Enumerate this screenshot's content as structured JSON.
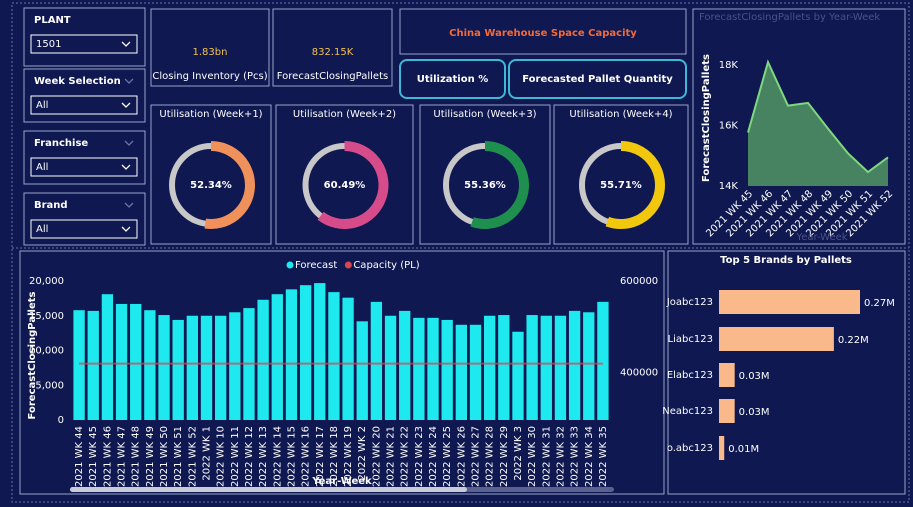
{
  "slicers": [
    {
      "label": "PLANT",
      "value": "1501"
    },
    {
      "label": "Week Selection",
      "value": "All"
    },
    {
      "label": "Franchise",
      "value": "All"
    },
    {
      "label": "Brand",
      "value": "All"
    }
  ],
  "cards": [
    {
      "value": "1.83bn",
      "label": "Closing Inventory (Pcs)"
    },
    {
      "value": "832.15K",
      "label": "ForecastClosingPallets"
    }
  ],
  "header": {
    "title": "China Warehouse Space Capacity",
    "buttons": [
      "Utilization %",
      "Forecasted Pallet Quantity"
    ]
  },
  "chart_data": [
    {
      "type": "donut",
      "title": "Utilisation (Week+1)",
      "values": [
        52.34
      ],
      "value_labels": [
        "52.34%"
      ],
      "color": "#f0905a"
    },
    {
      "type": "donut",
      "title": "Utilisation (Week+2)",
      "values": [
        60.49
      ],
      "value_labels": [
        "60.49%"
      ],
      "color": "#d64c8a"
    },
    {
      "type": "donut",
      "title": "Utilisation (Week+3)",
      "values": [
        55.36
      ],
      "value_labels": [
        "55.36%"
      ],
      "color": "#1f8f4e"
    },
    {
      "type": "donut",
      "title": "Utilisation (Week+4)",
      "values": [
        55.71
      ],
      "value_labels": [
        "55.71%"
      ],
      "color": "#f2c80f"
    },
    {
      "type": "area",
      "title": "ForecastClosingPallets by Year-Week",
      "y_label": "ForecastClosingPallets",
      "x_label": "Year-Week",
      "categories": [
        "2021 WK 45",
        "2021 WK 46",
        "2021 WK 47",
        "2021 WK 48",
        "2021 WK 49",
        "2021 WK 50",
        "2021 WK 51",
        "2021 WK 52"
      ],
      "values": [
        15770,
        18100,
        16660,
        16750,
        15900,
        15080,
        14460,
        14950
      ],
      "color": "#7ed87e",
      "ylim": [
        14000,
        18500
      ],
      "yticks": [
        {
          "value": 14000,
          "label": "14K"
        },
        {
          "value": 16000,
          "label": "16K"
        },
        {
          "value": 18000,
          "label": "18K"
        }
      ]
    },
    {
      "type": "bar",
      "y_label": "ForecastClosingPallets",
      "x_label": "Year-Week",
      "categories": [
        "2021 WK 44",
        "2021 WK 45",
        "2021 WK 46",
        "2021 WK 47",
        "2021 WK 48",
        "2021 WK 49",
        "2021 WK 50",
        "2021 WK 51",
        "2021 WK 52",
        "2022 WK 1",
        "2022 WK 10",
        "2022 WK 11",
        "2022 WK 12",
        "2022 WK 13",
        "2022 WK 14",
        "2022 WK 15",
        "2022 WK 16",
        "2022 WK 17",
        "2022 WK 18",
        "2022 WK 19",
        "2022 WK 2",
        "2022 WK 20",
        "2022 WK 21",
        "2022 WK 22",
        "2022 WK 23",
        "2022 WK 24",
        "2022 WK 25",
        "2022 WK 26",
        "2022 WK 27",
        "2022 WK 28",
        "2022 WK 29",
        "2022 WK 3",
        "2022 WK 30",
        "2022 WK 31",
        "2022 WK 32",
        "2022 WK 33",
        "2022 WK 34",
        "2022 WK 35"
      ],
      "series": [
        {
          "name": "Forecast",
          "color": "#1de9ee",
          "values": [
            15800,
            15700,
            18100,
            16700,
            16700,
            15800,
            15100,
            14400,
            15000,
            15000,
            15000,
            15500,
            16100,
            17300,
            18100,
            18800,
            19400,
            19700,
            18400,
            17600,
            14200,
            17000,
            15000,
            15700,
            14700,
            14700,
            14400,
            13700,
            13700,
            15000,
            15100,
            12700,
            15100,
            15000,
            15000,
            15700,
            15500,
            17000
          ]
        },
        {
          "name": "Capacity (PL)",
          "color": "#d64550",
          "axis": "y2",
          "values": [
            420000,
            420000,
            420000,
            420000,
            420000,
            420000,
            420000,
            420000,
            420000,
            420000,
            420000,
            420000,
            420000,
            420000,
            420000,
            420000,
            420000,
            420000,
            420000,
            420000,
            420000,
            420000,
            420000,
            420000,
            420000,
            420000,
            420000,
            420000,
            420000,
            420000,
            420000,
            420000,
            420000,
            420000,
            420000,
            420000,
            420000,
            420000
          ]
        }
      ],
      "ylim": [
        0,
        20000
      ],
      "yticks": [
        0,
        {
          "value": 5000,
          "label": "5,000"
        },
        {
          "value": 10000,
          "label": "10,000"
        },
        {
          "value": 15000,
          "label": "15,000"
        },
        {
          "value": 20000,
          "label": "20,000"
        }
      ],
      "y2lim": [
        297000,
        600000
      ],
      "y2ticks": [
        400000,
        600000
      ]
    },
    {
      "type": "hbar",
      "title": "Top 5 Brands by Pallets",
      "categories": [
        "Joabc123",
        "Liabc123",
        "Elabc123",
        "Neabc123",
        "o.abc123"
      ],
      "values": [
        270000,
        220000,
        30000,
        30000,
        10000
      ],
      "value_labels": [
        "0.27M",
        "0.22M",
        "0.03M",
        "0.03M",
        "0.01M"
      ],
      "color": "#f9b98a"
    }
  ]
}
